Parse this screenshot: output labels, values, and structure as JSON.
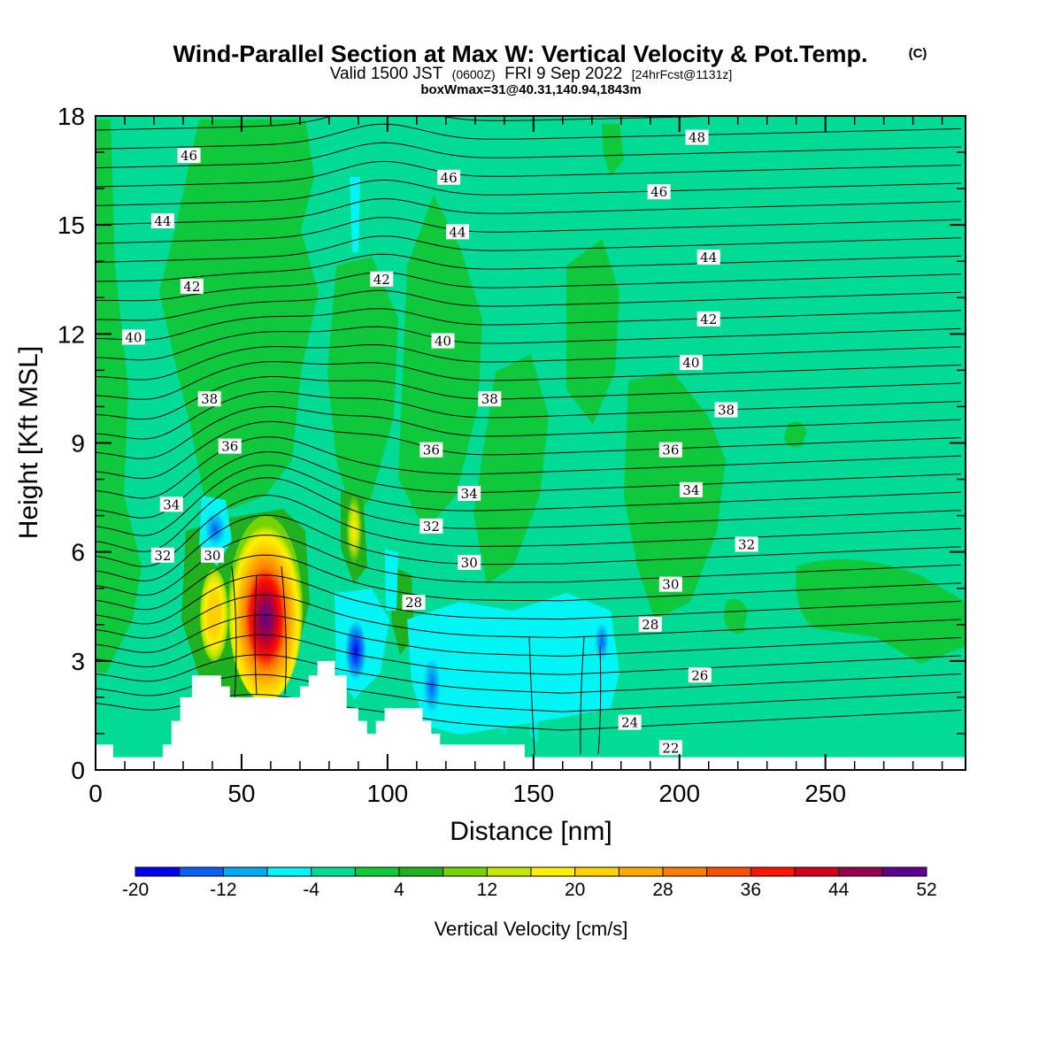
{
  "title": {
    "main": "Wind-Parallel Section at Max W: Vertical Velocity & Pot.Temp.",
    "copyright": "(C)",
    "valid_prefix": "Valid 1500 JST",
    "valid_utc": "(0600Z)",
    "valid_date": "FRI 9 Sep 2022",
    "forecast": "[24hrFcst@1131z]",
    "box_info": "boxWmax=31@40.31,140.94,1843m"
  },
  "colors": {
    "background_field": "#00dc96",
    "terrain": "#ffffff",
    "contour": "#000000"
  },
  "chart_data": {
    "type": "heatmap",
    "xlabel": "Distance [nm]",
    "ylabel": "Height [Kft MSL]",
    "xlim": [
      0,
      298
    ],
    "ylim": [
      0,
      18
    ],
    "x_ticks": [
      0,
      50,
      100,
      150,
      200,
      250
    ],
    "y_ticks": [
      0,
      3,
      6,
      9,
      12,
      15,
      18
    ],
    "colorbar": {
      "title": "Vertical Velocity [cm/s]",
      "levels": [
        -20,
        -16,
        -12,
        -8,
        -4,
        0,
        4,
        8,
        12,
        16,
        20,
        24,
        28,
        32,
        36,
        40,
        44,
        48,
        52
      ],
      "labels": [
        "-20",
        "-12",
        "-4",
        "4",
        "12",
        "20",
        "28",
        "36",
        "44",
        "52"
      ],
      "colors": [
        "#0000f0",
        "#0a5ff5",
        "#00aaf5",
        "#00f5f5",
        "#00dc96",
        "#10c83c",
        "#20b020",
        "#78d200",
        "#c8e600",
        "#fff000",
        "#ffd200",
        "#ffaa00",
        "#ff7d00",
        "#ff5000",
        "#ff1400",
        "#d2001e",
        "#960050",
        "#600090"
      ]
    },
    "vertical_velocity_features": [
      {
        "label": "updraft core",
        "x": 58,
        "y": 4.5,
        "max": 52
      },
      {
        "label": "updraft",
        "x": 40,
        "y": 4.2,
        "max": 24
      },
      {
        "label": "updraft",
        "x": 88,
        "y": 6.6,
        "max": 16
      },
      {
        "label": "downdraft",
        "x": 90,
        "y": 3.6,
        "max": -20
      },
      {
        "label": "downdraft",
        "x": 42,
        "y": 6.5,
        "max": -12
      },
      {
        "label": "downdraft",
        "x": 120,
        "y": 2.5,
        "max": -12
      }
    ],
    "theta_contour_labels": [
      {
        "value": "46",
        "x": 32,
        "y": 16.9
      },
      {
        "value": "44",
        "x": 23,
        "y": 15.1
      },
      {
        "value": "42",
        "x": 33,
        "y": 13.3
      },
      {
        "value": "40",
        "x": 13,
        "y": 11.9
      },
      {
        "value": "38",
        "x": 39,
        "y": 10.2
      },
      {
        "value": "36",
        "x": 46,
        "y": 8.9
      },
      {
        "value": "34",
        "x": 26,
        "y": 7.3
      },
      {
        "value": "32",
        "x": 23,
        "y": 5.9
      },
      {
        "value": "30",
        "x": 40,
        "y": 5.9
      },
      {
        "value": "46",
        "x": 121,
        "y": 16.3
      },
      {
        "value": "44",
        "x": 124,
        "y": 14.8
      },
      {
        "value": "42",
        "x": 98,
        "y": 13.5
      },
      {
        "value": "40",
        "x": 119,
        "y": 11.8
      },
      {
        "value": "38",
        "x": 135,
        "y": 10.2
      },
      {
        "value": "36",
        "x": 115,
        "y": 8.8
      },
      {
        "value": "34",
        "x": 128,
        "y": 7.6
      },
      {
        "value": "32",
        "x": 115,
        "y": 6.7
      },
      {
        "value": "30",
        "x": 128,
        "y": 5.7
      },
      {
        "value": "28",
        "x": 109,
        "y": 4.6
      },
      {
        "value": "48",
        "x": 206,
        "y": 17.4
      },
      {
        "value": "46",
        "x": 193,
        "y": 15.9
      },
      {
        "value": "44",
        "x": 210,
        "y": 14.1
      },
      {
        "value": "42",
        "x": 210,
        "y": 12.4
      },
      {
        "value": "40",
        "x": 204,
        "y": 11.2
      },
      {
        "value": "38",
        "x": 216,
        "y": 9.9
      },
      {
        "value": "36",
        "x": 197,
        "y": 8.8
      },
      {
        "value": "34",
        "x": 204,
        "y": 7.7
      },
      {
        "value": "32",
        "x": 223,
        "y": 6.2
      },
      {
        "value": "30",
        "x": 197,
        "y": 5.1
      },
      {
        "value": "28",
        "x": 190,
        "y": 4.0
      },
      {
        "value": "26",
        "x": 207,
        "y": 2.6
      },
      {
        "value": "24",
        "x": 183,
        "y": 1.3
      },
      {
        "value": "22",
        "x": 197,
        "y": 0.6
      }
    ],
    "terrain_profile": {
      "x": [
        0,
        6,
        6,
        20,
        23,
        23,
        26,
        26,
        29,
        29,
        33,
        33,
        43,
        43,
        46,
        46,
        70,
        70,
        73,
        73,
        76,
        76,
        82,
        82,
        86,
        86,
        90,
        90,
        93,
        93,
        96,
        96,
        99,
        99,
        112,
        112,
        115,
        115,
        118,
        118,
        147,
        147,
        298
      ],
      "y": [
        0.7,
        0.7,
        0.35,
        0.35,
        0.35,
        0.7,
        0.7,
        1.35,
        1.35,
        2.0,
        2.0,
        2.6,
        2.6,
        2.3,
        2.3,
        2.0,
        2.0,
        2.3,
        2.3,
        2.6,
        2.6,
        3.0,
        3.0,
        2.6,
        2.6,
        1.7,
        1.7,
        1.35,
        1.35,
        1.0,
        1.0,
        1.35,
        1.35,
        1.7,
        1.7,
        1.35,
        1.35,
        1.0,
        1.0,
        0.7,
        0.7,
        0.35,
        0.35
      ]
    }
  }
}
